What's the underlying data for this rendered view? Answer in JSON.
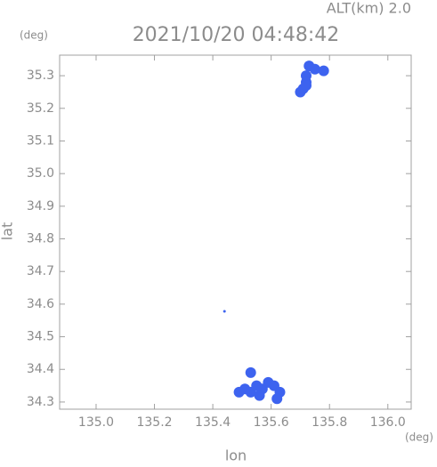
{
  "chart_data": {
    "type": "scatter",
    "title": "2021/10/20 04:48:42",
    "subtitle": "ALT(km) 2.0",
    "xlabel": "lon",
    "ylabel": "lat",
    "xunit": "(deg)",
    "yunit": "(deg)",
    "x": [
      135.73,
      135.75,
      135.78,
      135.72,
      135.72,
      135.71,
      135.7,
      135.72,
      135.44,
      135.53,
      135.51,
      135.53,
      135.55,
      135.57,
      135.59,
      135.61,
      135.63,
      135.62,
      135.49,
      135.56
    ],
    "values": [
      35.33,
      35.32,
      35.315,
      35.3,
      35.28,
      35.26,
      35.25,
      35.27,
      34.578,
      34.39,
      34.34,
      34.33,
      34.35,
      34.34,
      34.36,
      34.35,
      34.33,
      34.31,
      34.33,
      34.32
    ],
    "color": "#3d63ef",
    "xlim": [
      134.875,
      136.08
    ],
    "ylim": [
      34.278,
      35.363
    ],
    "xticks": [
      {
        "value": 135.0,
        "label": "135.0"
      },
      135.2,
      135.4,
      135.6,
      135.8,
      {
        "value": 136.0,
        "label": "136.0"
      }
    ],
    "yticks": [
      34.3,
      34.4,
      34.5,
      34.6,
      34.7,
      34.8,
      34.9,
      {
        "value": 35.0,
        "label": "35.0"
      },
      35.1,
      35.2,
      35.3
    ]
  }
}
